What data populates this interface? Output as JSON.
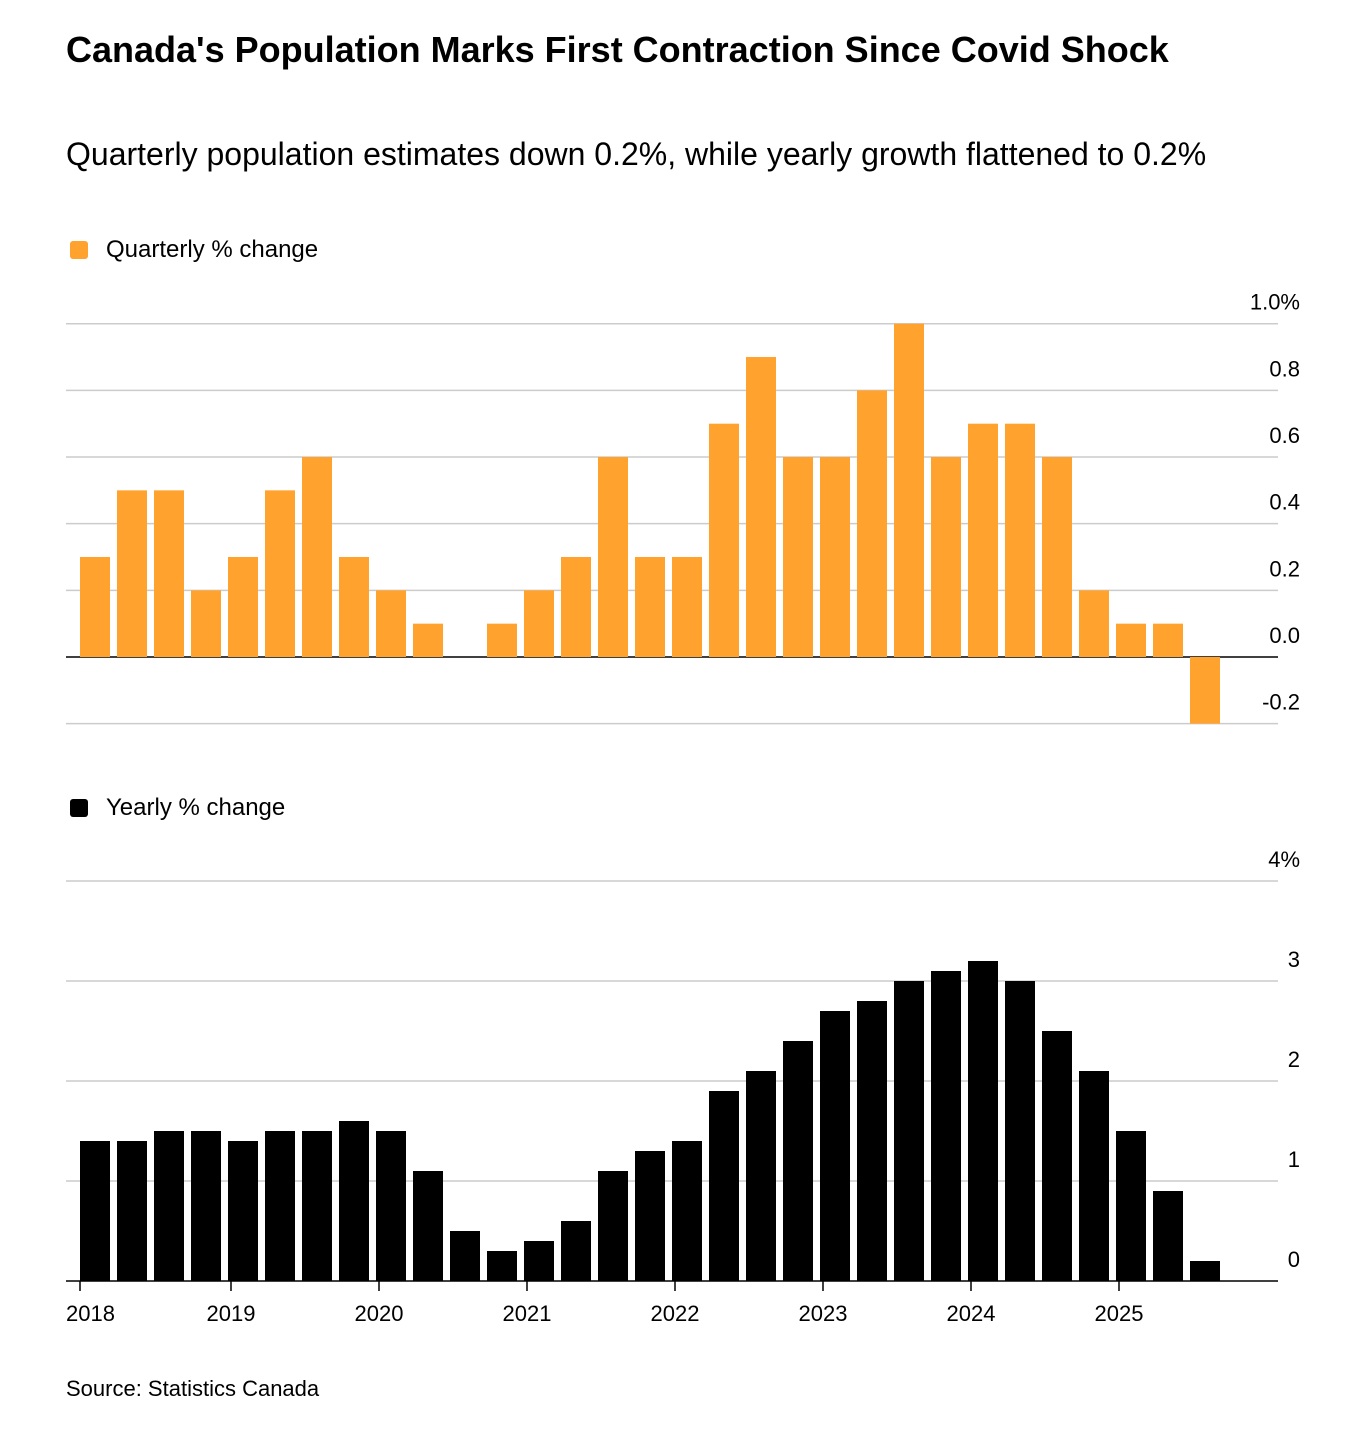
{
  "chart_data": [
    {
      "type": "bar",
      "title": "Canada's Population Marks First Contraction Since Covid Shock",
      "subtitle": "Quarterly population estimates down 0.2%, while yearly growth flattened to 0.2%",
      "legend": "Quarterly % change",
      "color": "#FFA22E",
      "yticks": [
        "1.0%",
        "0.8",
        "0.6",
        "0.4",
        "0.2",
        "0.0",
        "-0.2"
      ],
      "ytick_values": [
        1.0,
        0.8,
        0.6,
        0.4,
        0.2,
        0.0,
        -0.2
      ],
      "ylim": [
        -0.2,
        1.0
      ],
      "values": [
        0.3,
        0.5,
        0.5,
        0.2,
        0.3,
        0.5,
        0.6,
        0.3,
        0.2,
        0.1,
        0.0,
        0.1,
        0.2,
        0.3,
        0.6,
        0.3,
        0.3,
        0.7,
        0.9,
        0.6,
        0.6,
        0.8,
        1.0,
        0.6,
        0.7,
        0.7,
        0.6,
        0.2,
        0.1,
        0.1,
        -0.2
      ]
    },
    {
      "type": "bar",
      "legend": "Yearly % change",
      "color": "#000000",
      "yticks": [
        "4%",
        "3",
        "2",
        "1",
        "0"
      ],
      "ytick_values": [
        4,
        3,
        2,
        1,
        0
      ],
      "ylim": [
        0,
        4
      ],
      "values": [
        1.4,
        1.4,
        1.5,
        1.5,
        1.4,
        1.5,
        1.5,
        1.6,
        1.5,
        1.1,
        0.5,
        0.3,
        0.4,
        0.6,
        1.1,
        1.3,
        1.4,
        1.9,
        2.1,
        2.4,
        2.7,
        2.8,
        3.0,
        3.1,
        3.2,
        3.0,
        2.5,
        2.1,
        1.5,
        0.9,
        0.2
      ],
      "xticks": [
        "2018",
        "2019",
        "2020",
        "2021",
        "2022",
        "2023",
        "2024",
        "2025"
      ]
    }
  ],
  "source": "Source: Statistics Canada"
}
